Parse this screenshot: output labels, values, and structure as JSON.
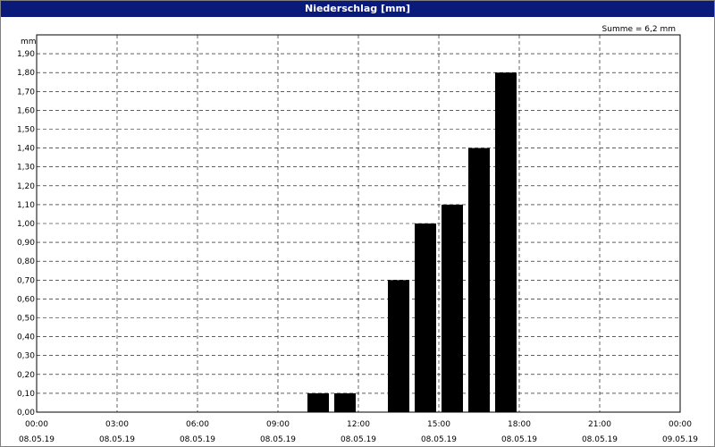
{
  "chart_data": {
    "type": "bar",
    "title": "Niederschlag [mm]",
    "ylabel": "mm",
    "annotation": "Summe = 6,2 mm",
    "ylim": [
      0,
      2.0
    ],
    "y_ticks": [
      "0,00",
      "0,10",
      "0,20",
      "0,30",
      "0,40",
      "0,50",
      "0,60",
      "0,70",
      "0,80",
      "0,90",
      "1,00",
      "1,10",
      "1,20",
      "1,30",
      "1,40",
      "1,50",
      "1,60",
      "1,70",
      "1,80",
      "1,90"
    ],
    "y_tick_values": [
      0,
      0.1,
      0.2,
      0.3,
      0.4,
      0.5,
      0.6,
      0.7,
      0.8,
      0.9,
      1.0,
      1.1,
      1.2,
      1.3,
      1.4,
      1.5,
      1.6,
      1.7,
      1.8,
      1.9
    ],
    "x_ticks": [
      {
        "time": "00:00",
        "date": "08.05.19"
      },
      {
        "time": "03:00",
        "date": "08.05.19"
      },
      {
        "time": "06:00",
        "date": "08.05.19"
      },
      {
        "time": "09:00",
        "date": "08.05.19"
      },
      {
        "time": "12:00",
        "date": "08.05.19"
      },
      {
        "time": "15:00",
        "date": "08.05.19"
      },
      {
        "time": "18:00",
        "date": "08.05.19"
      },
      {
        "time": "21:00",
        "date": "08.05.19"
      },
      {
        "time": "00:00",
        "date": "09.05.19"
      }
    ],
    "x_range_hours": [
      0,
      24
    ],
    "grid": true,
    "bars": [
      {
        "hour_start": 10,
        "value": 0.1
      },
      {
        "hour_start": 11,
        "value": 0.1
      },
      {
        "hour_start": 13,
        "value": 0.7
      },
      {
        "hour_start": 14,
        "value": 1.0
      },
      {
        "hour_start": 15,
        "value": 1.1
      },
      {
        "hour_start": 16,
        "value": 1.4
      },
      {
        "hour_start": 17,
        "value": 1.8
      }
    ],
    "colors": {
      "bar": "#000000",
      "grid": "#000000",
      "titlebar": "#0a1a7a"
    }
  }
}
